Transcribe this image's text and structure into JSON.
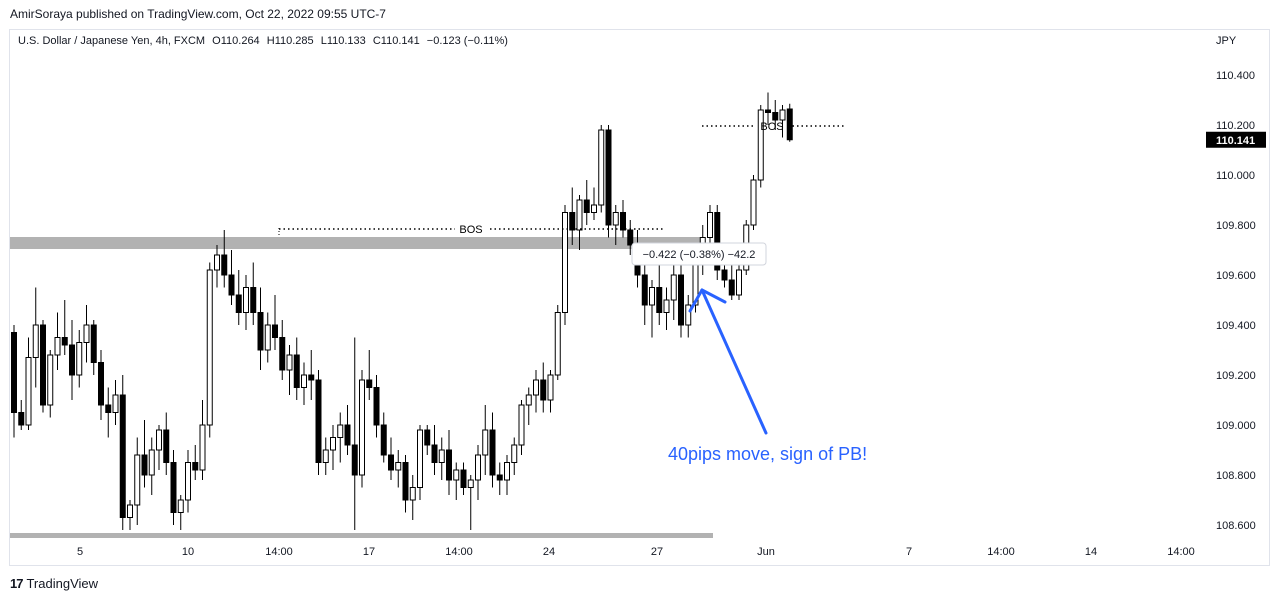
{
  "header": {
    "published": "AmirSoraya published on TradingView.com, Oct 22, 2022 09:55 UTC-7"
  },
  "legend": {
    "symbol": "U.S. Dollar / Japanese Yen, 4h, FXCM",
    "open": "O110.264",
    "high": "H110.285",
    "low": "L110.133",
    "close": "C110.141",
    "change": "−0.123 (−0.11%)"
  },
  "axis": {
    "currency": "JPY",
    "last_price": "110.141"
  },
  "footer": {
    "brand": "TradingView",
    "logo": "17"
  },
  "chart_data": {
    "type": "candlestick",
    "symbol": "USDJPY",
    "timeframe": "4h",
    "ylim": [
      108.55,
      110.45
    ],
    "yticks": [
      "110.400",
      "110.200",
      "110.000",
      "109.800",
      "109.600",
      "109.400",
      "109.200",
      "109.000",
      "108.800",
      "108.600"
    ],
    "xticks": [
      "5",
      "10",
      "14:00",
      "17",
      "14:00",
      "24",
      "27",
      "Jun",
      "7",
      "14:00",
      "14",
      "14:00"
    ],
    "last_price": 110.141,
    "candles": [
      {
        "o": 109.37,
        "h": 109.4,
        "l": 108.95,
        "c": 109.05
      },
      {
        "o": 109.05,
        "h": 109.1,
        "l": 108.98,
        "c": 109.0
      },
      {
        "o": 109.0,
        "h": 109.35,
        "l": 108.98,
        "c": 109.27
      },
      {
        "o": 109.27,
        "h": 109.55,
        "l": 109.15,
        "c": 109.4
      },
      {
        "o": 109.4,
        "h": 109.42,
        "l": 109.05,
        "c": 109.08
      },
      {
        "o": 109.08,
        "h": 109.3,
        "l": 109.03,
        "c": 109.28
      },
      {
        "o": 109.28,
        "h": 109.45,
        "l": 109.22,
        "c": 109.35
      },
      {
        "o": 109.35,
        "h": 109.5,
        "l": 109.28,
        "c": 109.32
      },
      {
        "o": 109.32,
        "h": 109.42,
        "l": 109.1,
        "c": 109.2
      },
      {
        "o": 109.2,
        "h": 109.38,
        "l": 109.15,
        "c": 109.33
      },
      {
        "o": 109.33,
        "h": 109.48,
        "l": 109.25,
        "c": 109.4
      },
      {
        "o": 109.4,
        "h": 109.42,
        "l": 109.2,
        "c": 109.25
      },
      {
        "o": 109.25,
        "h": 109.3,
        "l": 109.02,
        "c": 109.08
      },
      {
        "o": 109.08,
        "h": 109.15,
        "l": 108.95,
        "c": 109.05
      },
      {
        "o": 109.05,
        "h": 109.18,
        "l": 109.0,
        "c": 109.12
      },
      {
        "o": 109.12,
        "h": 109.2,
        "l": 108.58,
        "c": 108.63
      },
      {
        "o": 108.63,
        "h": 108.7,
        "l": 108.58,
        "c": 108.68
      },
      {
        "o": 108.68,
        "h": 108.95,
        "l": 108.6,
        "c": 108.88
      },
      {
        "o": 108.88,
        "h": 109.02,
        "l": 108.75,
        "c": 108.8
      },
      {
        "o": 108.8,
        "h": 108.95,
        "l": 108.72,
        "c": 108.9
      },
      {
        "o": 108.9,
        "h": 109.0,
        "l": 108.82,
        "c": 108.98
      },
      {
        "o": 108.98,
        "h": 109.05,
        "l": 108.8,
        "c": 108.85
      },
      {
        "o": 108.85,
        "h": 108.9,
        "l": 108.6,
        "c": 108.65
      },
      {
        "o": 108.65,
        "h": 108.72,
        "l": 108.58,
        "c": 108.7
      },
      {
        "o": 108.7,
        "h": 108.9,
        "l": 108.65,
        "c": 108.85
      },
      {
        "o": 108.85,
        "h": 108.92,
        "l": 108.78,
        "c": 108.82
      },
      {
        "o": 108.82,
        "h": 109.1,
        "l": 108.78,
        "c": 109.0
      },
      {
        "o": 109.0,
        "h": 109.65,
        "l": 108.95,
        "c": 109.62
      },
      {
        "o": 109.62,
        "h": 109.72,
        "l": 109.55,
        "c": 109.68
      },
      {
        "o": 109.68,
        "h": 109.78,
        "l": 109.55,
        "c": 109.6
      },
      {
        "o": 109.6,
        "h": 109.7,
        "l": 109.48,
        "c": 109.52
      },
      {
        "o": 109.52,
        "h": 109.62,
        "l": 109.4,
        "c": 109.45
      },
      {
        "o": 109.45,
        "h": 109.6,
        "l": 109.38,
        "c": 109.55
      },
      {
        "o": 109.55,
        "h": 109.65,
        "l": 109.4,
        "c": 109.45
      },
      {
        "o": 109.45,
        "h": 109.55,
        "l": 109.22,
        "c": 109.3
      },
      {
        "o": 109.3,
        "h": 109.45,
        "l": 109.25,
        "c": 109.4
      },
      {
        "o": 109.4,
        "h": 109.52,
        "l": 109.3,
        "c": 109.35
      },
      {
        "o": 109.35,
        "h": 109.42,
        "l": 109.18,
        "c": 109.22
      },
      {
        "o": 109.22,
        "h": 109.32,
        "l": 109.12,
        "c": 109.28
      },
      {
        "o": 109.28,
        "h": 109.35,
        "l": 109.1,
        "c": 109.15
      },
      {
        "o": 109.15,
        "h": 109.25,
        "l": 109.08,
        "c": 109.2
      },
      {
        "o": 109.2,
        "h": 109.3,
        "l": 109.1,
        "c": 109.18
      },
      {
        "o": 109.18,
        "h": 109.22,
        "l": 108.8,
        "c": 108.85
      },
      {
        "o": 108.85,
        "h": 108.95,
        "l": 108.8,
        "c": 108.9
      },
      {
        "o": 108.9,
        "h": 109.0,
        "l": 108.82,
        "c": 108.95
      },
      {
        "o": 108.95,
        "h": 109.05,
        "l": 108.85,
        "c": 109.0
      },
      {
        "o": 109.0,
        "h": 109.08,
        "l": 108.88,
        "c": 108.92
      },
      {
        "o": 108.92,
        "h": 109.35,
        "l": 108.58,
        "c": 108.8
      },
      {
        "o": 108.8,
        "h": 109.22,
        "l": 108.75,
        "c": 109.18
      },
      {
        "o": 109.18,
        "h": 109.3,
        "l": 109.1,
        "c": 109.15
      },
      {
        "o": 109.15,
        "h": 109.2,
        "l": 108.95,
        "c": 109.0
      },
      {
        "o": 109.0,
        "h": 109.05,
        "l": 108.85,
        "c": 108.88
      },
      {
        "o": 108.88,
        "h": 108.95,
        "l": 108.78,
        "c": 108.82
      },
      {
        "o": 108.82,
        "h": 108.9,
        "l": 108.75,
        "c": 108.85
      },
      {
        "o": 108.85,
        "h": 108.88,
        "l": 108.65,
        "c": 108.7
      },
      {
        "o": 108.7,
        "h": 108.8,
        "l": 108.62,
        "c": 108.75
      },
      {
        "o": 108.75,
        "h": 109.0,
        "l": 108.7,
        "c": 108.98
      },
      {
        "o": 108.98,
        "h": 109.0,
        "l": 108.88,
        "c": 108.92
      },
      {
        "o": 108.92,
        "h": 109.0,
        "l": 108.8,
        "c": 108.85
      },
      {
        "o": 108.85,
        "h": 108.95,
        "l": 108.78,
        "c": 108.9
      },
      {
        "o": 108.9,
        "h": 108.98,
        "l": 108.72,
        "c": 108.78
      },
      {
        "o": 108.78,
        "h": 108.85,
        "l": 108.7,
        "c": 108.82
      },
      {
        "o": 108.82,
        "h": 108.85,
        "l": 108.72,
        "c": 108.75
      },
      {
        "o": 108.75,
        "h": 108.8,
        "l": 108.58,
        "c": 108.78
      },
      {
        "o": 108.78,
        "h": 108.92,
        "l": 108.7,
        "c": 108.88
      },
      {
        "o": 108.88,
        "h": 109.08,
        "l": 108.8,
        "c": 108.98
      },
      {
        "o": 108.98,
        "h": 109.05,
        "l": 108.75,
        "c": 108.8
      },
      {
        "o": 108.8,
        "h": 108.85,
        "l": 108.72,
        "c": 108.78
      },
      {
        "o": 108.78,
        "h": 108.88,
        "l": 108.72,
        "c": 108.85
      },
      {
        "o": 108.85,
        "h": 108.95,
        "l": 108.8,
        "c": 108.92
      },
      {
        "o": 108.92,
        "h": 109.1,
        "l": 108.88,
        "c": 109.08
      },
      {
        "o": 109.08,
        "h": 109.15,
        "l": 109.0,
        "c": 109.12
      },
      {
        "o": 109.12,
        "h": 109.22,
        "l": 109.05,
        "c": 109.18
      },
      {
        "o": 109.18,
        "h": 109.25,
        "l": 109.05,
        "c": 109.1
      },
      {
        "o": 109.1,
        "h": 109.22,
        "l": 109.05,
        "c": 109.2
      },
      {
        "o": 109.2,
        "h": 109.48,
        "l": 109.18,
        "c": 109.45
      },
      {
        "o": 109.45,
        "h": 109.88,
        "l": 109.4,
        "c": 109.85
      },
      {
        "o": 109.85,
        "h": 109.95,
        "l": 109.72,
        "c": 109.78
      },
      {
        "o": 109.78,
        "h": 109.92,
        "l": 109.7,
        "c": 109.9
      },
      {
        "o": 109.9,
        "h": 109.98,
        "l": 109.8,
        "c": 109.85
      },
      {
        "o": 109.85,
        "h": 109.95,
        "l": 109.82,
        "c": 109.88
      },
      {
        "o": 109.88,
        "h": 110.2,
        "l": 109.85,
        "c": 110.18
      },
      {
        "o": 110.18,
        "h": 110.2,
        "l": 109.75,
        "c": 109.8
      },
      {
        "o": 109.8,
        "h": 109.88,
        "l": 109.72,
        "c": 109.85
      },
      {
        "o": 109.85,
        "h": 109.9,
        "l": 109.75,
        "c": 109.78
      },
      {
        "o": 109.78,
        "h": 109.82,
        "l": 109.68,
        "c": 109.72
      },
      {
        "o": 109.72,
        "h": 109.78,
        "l": 109.55,
        "c": 109.6
      },
      {
        "o": 109.6,
        "h": 109.7,
        "l": 109.4,
        "c": 109.48
      },
      {
        "o": 109.48,
        "h": 109.58,
        "l": 109.35,
        "c": 109.55
      },
      {
        "o": 109.55,
        "h": 109.65,
        "l": 109.4,
        "c": 109.45
      },
      {
        "o": 109.45,
        "h": 109.55,
        "l": 109.38,
        "c": 109.5
      },
      {
        "o": 109.5,
        "h": 109.65,
        "l": 109.42,
        "c": 109.6
      },
      {
        "o": 109.6,
        "h": 109.68,
        "l": 109.35,
        "c": 109.4
      },
      {
        "o": 109.4,
        "h": 109.52,
        "l": 109.35,
        "c": 109.48
      },
      {
        "o": 109.48,
        "h": 109.68,
        "l": 109.45,
        "c": 109.65
      },
      {
        "o": 109.65,
        "h": 109.8,
        "l": 109.6,
        "c": 109.75
      },
      {
        "o": 109.75,
        "h": 109.88,
        "l": 109.7,
        "c": 109.85
      },
      {
        "o": 109.85,
        "h": 109.88,
        "l": 109.58,
        "c": 109.62
      },
      {
        "o": 109.62,
        "h": 109.68,
        "l": 109.55,
        "c": 109.58
      },
      {
        "o": 109.58,
        "h": 109.64,
        "l": 109.5,
        "c": 109.52
      },
      {
        "o": 109.52,
        "h": 109.65,
        "l": 109.5,
        "c": 109.62
      },
      {
        "o": 109.62,
        "h": 109.82,
        "l": 109.6,
        "c": 109.8
      },
      {
        "o": 109.8,
        "h": 110.0,
        "l": 109.78,
        "c": 109.98
      },
      {
        "o": 109.98,
        "h": 110.28,
        "l": 109.95,
        "c": 110.26
      },
      {
        "o": 110.26,
        "h": 110.33,
        "l": 110.2,
        "c": 110.25
      },
      {
        "o": 110.25,
        "h": 110.3,
        "l": 110.18,
        "c": 110.22
      },
      {
        "o": 110.22,
        "h": 110.28,
        "l": 110.15,
        "c": 110.26
      },
      {
        "o": 110.264,
        "h": 110.285,
        "l": 110.133,
        "c": 110.141
      }
    ],
    "zones": [
      {
        "from": 109.7,
        "to": 109.75
      },
      {
        "from": 108.56,
        "to": 108.58
      }
    ],
    "annotations": [
      {
        "label": "BOS",
        "price": 109.79
      },
      {
        "label": "BOS",
        "price": 110.2
      },
      {
        "label": "−0.422 (−0.38%) −42.2",
        "kind": "measure"
      },
      {
        "label": "40pips move, sign of PB!",
        "kind": "note",
        "color": "#2962ff"
      }
    ]
  }
}
